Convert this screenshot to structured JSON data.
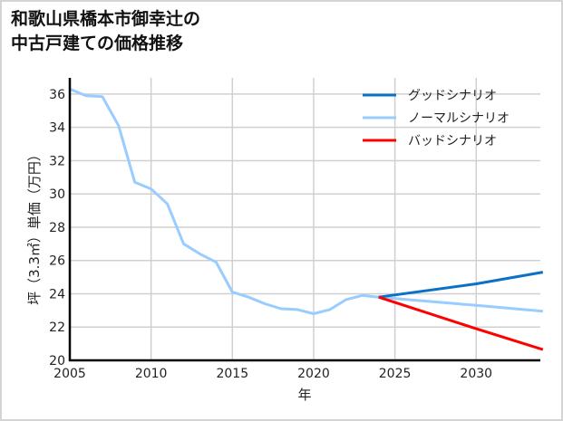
{
  "title": "和歌山県橋本市御幸辻の\n中古戸建ての価格推移",
  "colors": {
    "good": "#0a70c8",
    "normal": "#99ccff",
    "bad": "#ff0000",
    "grid": "#d0d0d0",
    "axis": "#000000"
  },
  "chart_data": {
    "type": "line",
    "title": "和歌山県橋本市御幸辻の中古戸建ての価格推移",
    "xlabel": "年",
    "ylabel": "坪（3.3㎡）単価（万円）",
    "xlim": [
      2005,
      2034.1
    ],
    "ylim": [
      20,
      37
    ],
    "xticks": [
      2005,
      2010,
      2015,
      2020,
      2025,
      2030
    ],
    "yticks": [
      20,
      22,
      24,
      26,
      28,
      30,
      32,
      34,
      36
    ],
    "grid": true,
    "legend_position": "upper right",
    "legend": [
      "グッドシナリオ",
      "ノーマルシナリオ",
      "バッドシナリオ"
    ],
    "series": [
      {
        "name": "ノーマルシナリオ",
        "color": "#99ccff",
        "x": [
          2005,
          2006,
          2007,
          2008,
          2009,
          2010,
          2011,
          2012,
          2013,
          2014,
          2015,
          2016,
          2017,
          2018,
          2019,
          2020,
          2021,
          2022,
          2023,
          2024,
          2030,
          2034.1
        ],
        "values": [
          36.3,
          35.9,
          35.85,
          34.1,
          30.7,
          30.3,
          29.4,
          27.0,
          26.4,
          25.9,
          24.1,
          23.8,
          23.4,
          23.1,
          23.05,
          22.8,
          23.05,
          23.65,
          23.9,
          23.8,
          23.3,
          22.95
        ]
      },
      {
        "name": "グッドシナリオ",
        "color": "#0a70c8",
        "x": [
          2024,
          2030,
          2034.1
        ],
        "values": [
          23.8,
          24.6,
          25.3
        ]
      },
      {
        "name": "バッドシナリオ",
        "color": "#ff0000",
        "x": [
          2024,
          2030,
          2034.1
        ],
        "values": [
          23.8,
          21.9,
          20.65
        ]
      }
    ]
  }
}
